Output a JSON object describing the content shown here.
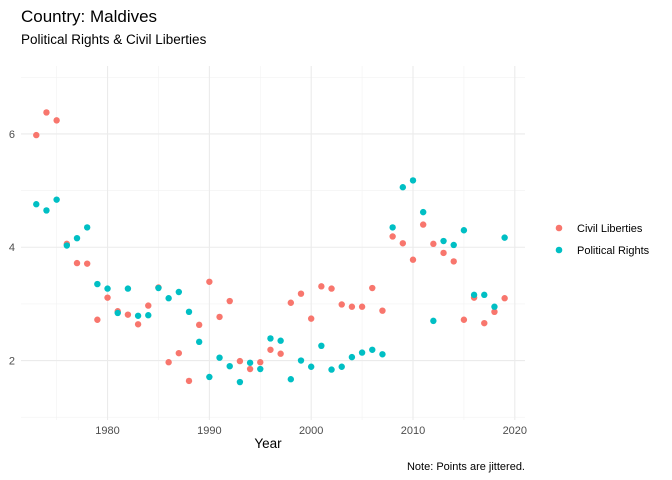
{
  "chart_data": {
    "type": "scatter",
    "title": "Country: Maldives",
    "subtitle": "Political Rights & Civil Liberties",
    "xlabel": "Year",
    "ylabel": "",
    "caption": "Note: Points are jittered.",
    "xlim": [
      1971.5,
      2021
    ],
    "ylim": [
      0.95,
      7.2
    ],
    "x_ticks": [
      1980,
      1990,
      2000,
      2010,
      2020
    ],
    "y_ticks": [
      2,
      4,
      6
    ],
    "grid": true,
    "legend_position": "right",
    "series": [
      {
        "name": "Civil Liberties",
        "color": "#F8766D",
        "points": [
          [
            1973,
            5.98
          ],
          [
            1974,
            6.38
          ],
          [
            1975,
            6.24
          ],
          [
            1976,
            4.06
          ],
          [
            1977,
            3.72
          ],
          [
            1978,
            3.71
          ],
          [
            1979,
            2.72
          ],
          [
            1980,
            3.11
          ],
          [
            1981,
            2.87
          ],
          [
            1982,
            2.81
          ],
          [
            1983,
            2.64
          ],
          [
            1984,
            2.97
          ],
          [
            1985,
            3.29
          ],
          [
            1986,
            1.97
          ],
          [
            1987,
            2.13
          ],
          [
            1988,
            1.64
          ],
          [
            1989,
            2.63
          ],
          [
            1990,
            3.39
          ],
          [
            1991,
            2.77
          ],
          [
            1992,
            3.05
          ],
          [
            1993,
            1.99
          ],
          [
            1994,
            1.85
          ],
          [
            1995,
            1.97
          ],
          [
            1996,
            2.19
          ],
          [
            1997,
            2.12
          ],
          [
            1998,
            3.02
          ],
          [
            1999,
            3.18
          ],
          [
            2000,
            2.74
          ],
          [
            2001,
            3.31
          ],
          [
            2002,
            3.27
          ],
          [
            2003,
            2.99
          ],
          [
            2004,
            2.95
          ],
          [
            2005,
            2.95
          ],
          [
            2006,
            3.28
          ],
          [
            2007,
            2.88
          ],
          [
            2008,
            4.19
          ],
          [
            2009,
            4.07
          ],
          [
            2010,
            3.78
          ],
          [
            2011,
            4.4
          ],
          [
            2012,
            4.06
          ],
          [
            2013,
            3.9
          ],
          [
            2014,
            3.75
          ],
          [
            2015,
            2.72
          ],
          [
            2016,
            3.11
          ],
          [
            2017,
            2.66
          ],
          [
            2018,
            2.86
          ],
          [
            2019,
            3.1
          ]
        ]
      },
      {
        "name": "Political Rights",
        "color": "#00BFC4",
        "points": [
          [
            1973,
            4.76
          ],
          [
            1974,
            4.65
          ],
          [
            1975,
            4.84
          ],
          [
            1976,
            4.03
          ],
          [
            1977,
            4.16
          ],
          [
            1978,
            4.35
          ],
          [
            1979,
            3.35
          ],
          [
            1980,
            3.27
          ],
          [
            1981,
            2.84
          ],
          [
            1982,
            3.27
          ],
          [
            1983,
            2.79
          ],
          [
            1984,
            2.8
          ],
          [
            1985,
            3.28
          ],
          [
            1986,
            3.1
          ],
          [
            1987,
            3.21
          ],
          [
            1988,
            2.86
          ],
          [
            1989,
            2.33
          ],
          [
            1990,
            1.71
          ],
          [
            1991,
            2.05
          ],
          [
            1992,
            1.9
          ],
          [
            1993,
            1.62
          ],
          [
            1994,
            1.96
          ],
          [
            1995,
            1.85
          ],
          [
            1996,
            2.39
          ],
          [
            1997,
            2.35
          ],
          [
            1998,
            1.67
          ],
          [
            1999,
            2.0
          ],
          [
            2000,
            1.89
          ],
          [
            2001,
            2.26
          ],
          [
            2002,
            1.84
          ],
          [
            2003,
            1.89
          ],
          [
            2004,
            2.06
          ],
          [
            2005,
            2.14
          ],
          [
            2006,
            2.19
          ],
          [
            2007,
            2.11
          ],
          [
            2008,
            4.35
          ],
          [
            2009,
            5.06
          ],
          [
            2010,
            5.18
          ],
          [
            2011,
            4.62
          ],
          [
            2012,
            2.7
          ],
          [
            2013,
            4.11
          ],
          [
            2014,
            4.04
          ],
          [
            2015,
            4.3
          ],
          [
            2016,
            3.16
          ],
          [
            2017,
            3.16
          ],
          [
            2018,
            2.95
          ],
          [
            2019,
            4.17
          ]
        ]
      }
    ]
  }
}
